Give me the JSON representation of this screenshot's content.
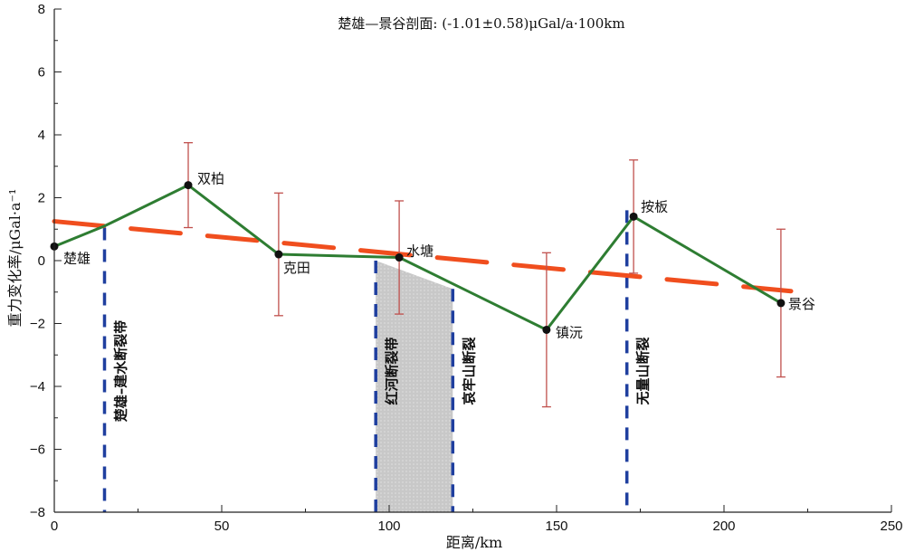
{
  "chart_data": {
    "type": "line",
    "title": "楚雄—景谷剖面: (-1.01±0.58)μGal/a·100km",
    "xlabel": "距离/km",
    "ylabel": "重力变化率/μGal·a⁻¹",
    "xlim": [
      0,
      250
    ],
    "ylim": [
      -8,
      8
    ],
    "xticks": [
      0,
      50,
      100,
      150,
      200,
      250
    ],
    "yticks": [
      8,
      6,
      4,
      2,
      0,
      -2,
      -4,
      -6,
      -8
    ],
    "ytick_labels": [
      "8",
      "6",
      "4",
      "2",
      "0",
      "−2",
      "−4",
      "−6",
      "−8"
    ],
    "grid": false,
    "series": [
      {
        "kind": "observed",
        "color": "#2e7d32",
        "points": [
          {
            "x": 0,
            "y": 0.45,
            "err": null
          },
          {
            "x": 40,
            "y": 2.4,
            "err": 1.35
          },
          {
            "x": 67,
            "y": 0.2,
            "err": 1.95
          },
          {
            "x": 103,
            "y": 0.1,
            "err": 1.8
          },
          {
            "x": 147,
            "y": -2.2,
            "err": 2.45
          },
          {
            "x": 173,
            "y": 1.4,
            "err": 1.8
          },
          {
            "x": 217,
            "y": -1.35,
            "err": 2.35
          }
        ],
        "line_nodes": [
          {
            "x": 0,
            "y": 0.45
          },
          {
            "x": 15,
            "y": 1.1
          },
          {
            "x": 40,
            "y": 2.4
          },
          {
            "x": 67,
            "y": 0.2
          },
          {
            "x": 103,
            "y": 0.1
          },
          {
            "x": 147,
            "y": -2.2
          },
          {
            "x": 173,
            "y": 1.4
          },
          {
            "x": 217,
            "y": -1.35
          }
        ]
      },
      {
        "kind": "trend",
        "color": "#f04e1e",
        "style": "dashed",
        "x": [
          0,
          220
        ],
        "y": [
          1.25,
          -0.97
        ]
      }
    ],
    "stations": [
      {
        "name": "楚雄",
        "x": 0,
        "y": 0.45
      },
      {
        "name": "双柏",
        "x": 40,
        "y": 2.4
      },
      {
        "name": "克田",
        "x": 67,
        "y": 0.2
      },
      {
        "name": "水塘",
        "x": 103,
        "y": 0.1
      },
      {
        "name": "镇沅",
        "x": 147,
        "y": -2.2
      },
      {
        "name": "按板",
        "x": 173,
        "y": 1.4
      },
      {
        "name": "景谷",
        "x": 217,
        "y": -1.35
      }
    ],
    "faults": [
      {
        "name": "楚雄–建水断裂带",
        "x": 15,
        "y_top": 1.05,
        "y_bottom": -8
      },
      {
        "name": "红河断裂带",
        "x": 96,
        "y_top": 0.0,
        "y_bottom": -8
      },
      {
        "name": "哀牢山断裂",
        "x": 119,
        "y_top": -0.9,
        "y_bottom": -8
      },
      {
        "name": "无量山断裂",
        "x": 171,
        "y_top": 1.6,
        "y_bottom": -8
      }
    ],
    "shaded_zone": {
      "x0": 96,
      "x1": 119,
      "y_top_left": 0.0,
      "y_top_right": -0.9,
      "color": "#c8c8c8"
    },
    "fault_color": "#1f3f9f",
    "marker_color": "#111111",
    "errorbar_color": "#c0504d"
  }
}
